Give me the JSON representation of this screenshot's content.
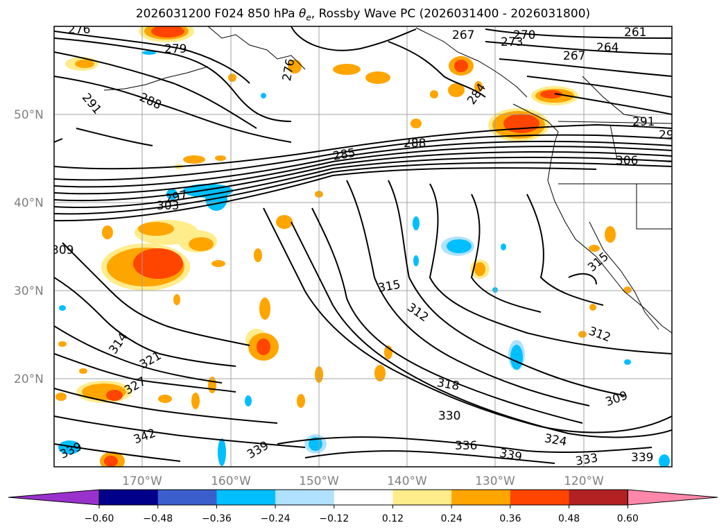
{
  "title": {
    "prefix": "2026031200 F024 850 hPa ",
    "theta": "θ",
    "theta_sub": "e",
    "suffix": ", Rossby Wave PC (2026031400 - 2026031800)"
  },
  "map": {
    "lon_range": [
      -180,
      -110
    ],
    "lat_range": [
      10,
      60
    ],
    "lat_labels": [
      "50°N",
      "40°N",
      "30°N",
      "20°N"
    ],
    "lon_labels": [
      "170°W",
      "160°W",
      "150°W",
      "140°W",
      "130°W",
      "120°W"
    ],
    "contour_labels": [
      "276",
      "279",
      "267",
      "270",
      "273",
      "261",
      "264",
      "267",
      "276",
      "291",
      "288",
      "284",
      "291",
      "29",
      "285",
      "288",
      "306",
      "297",
      "303",
      "309",
      "315",
      "312",
      "315",
      "314",
      "312",
      "321",
      "327",
      "318",
      "309",
      "330",
      "336",
      "324",
      "333",
      "339",
      "339",
      "339",
      "342",
      "339"
    ]
  },
  "colorbar": {
    "ticks": [
      "−0.60",
      "−0.48",
      "−0.36",
      "−0.24",
      "−0.12",
      "0.12",
      "0.24",
      "0.36",
      "0.48",
      "0.60"
    ],
    "colors": [
      "#9932CC",
      "#00008B",
      "#3A5FCD",
      "#00BFFF",
      "#B0E2FF",
      "#FFFFFF",
      "#FFEC8B",
      "#FFA500",
      "#FF4500",
      "#B22222",
      "#FF88AA"
    ]
  }
}
